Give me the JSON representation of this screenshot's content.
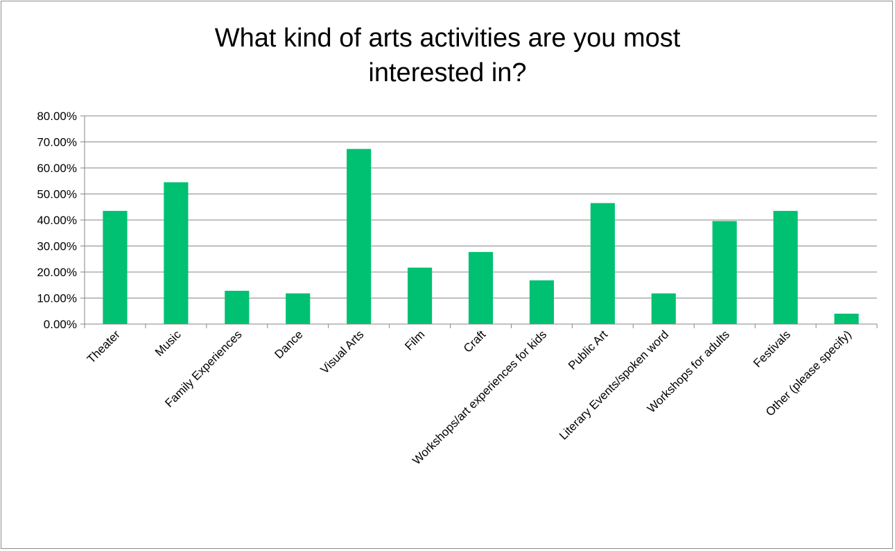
{
  "chart_data": {
    "type": "bar",
    "title_lines": [
      "What kind of arts activities are you most",
      "interested in?"
    ],
    "categories": [
      "Theater",
      "Music",
      "Family Experiences",
      "Dance",
      "Visual Arts",
      "Film",
      "Craft",
      "Workshops/art experiences for kids",
      "Public Art",
      "Literary Events/spoken word",
      "Workshops for adults",
      "Festivals",
      "Other (please specify)"
    ],
    "values": [
      43.5,
      54.5,
      12.8,
      11.8,
      67.3,
      21.7,
      27.7,
      16.8,
      46.5,
      11.8,
      39.6,
      43.5,
      4.0
    ],
    "y_ticks": [
      "0.00%",
      "10.00%",
      "20.00%",
      "30.00%",
      "40.00%",
      "50.00%",
      "60.00%",
      "70.00%",
      "80.00%"
    ],
    "ylim": [
      0,
      80
    ],
    "grid": true,
    "legend": "none",
    "bar_color": "#00c171"
  }
}
